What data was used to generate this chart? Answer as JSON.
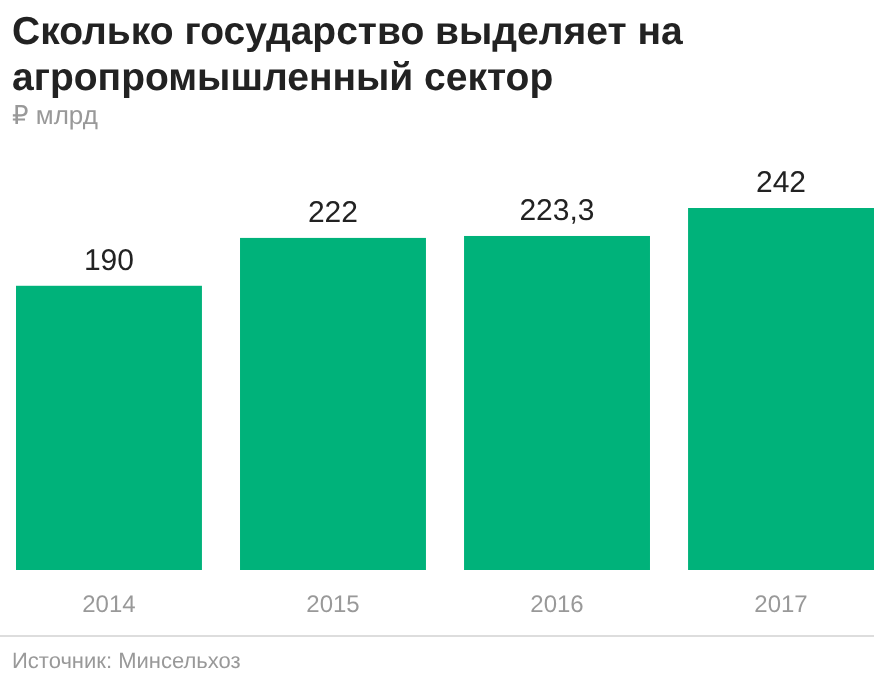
{
  "chart_data": {
    "type": "bar",
    "title": "Сколько государство выделяет на агропромышленный сектор",
    "ylabel": "₽ млрд",
    "categories": [
      "2014",
      "2015",
      "2016",
      "2017"
    ],
    "values": [
      190,
      222,
      223.3,
      242
    ],
    "value_labels": [
      "190",
      "222",
      "223,3",
      "242"
    ],
    "color": "#00b27a",
    "annotations": [
      "Источник: Минсельхоз"
    ]
  }
}
